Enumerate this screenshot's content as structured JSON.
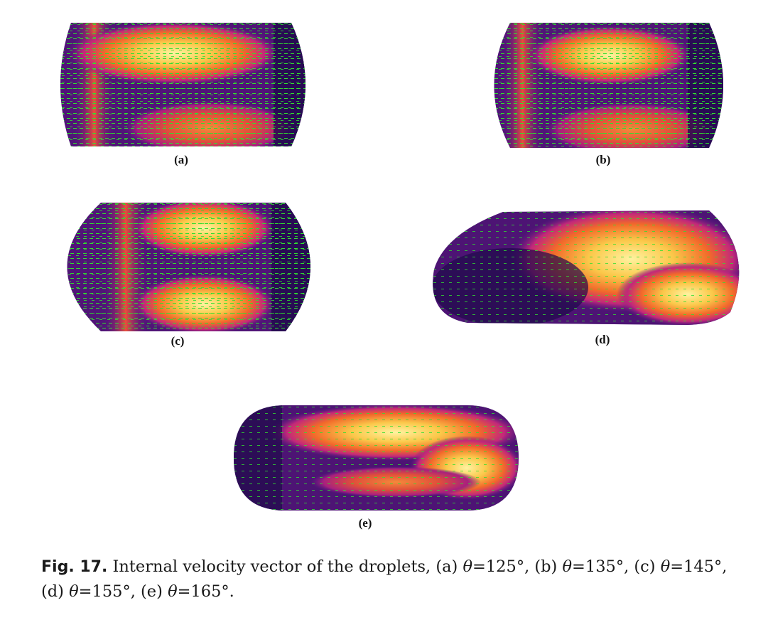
{
  "panels": [
    {
      "id": "a",
      "label": "(a)",
      "angle": "125°"
    },
    {
      "id": "b",
      "label": "(b)",
      "angle": "135°"
    },
    {
      "id": "c",
      "label": "(c)",
      "angle": "145°"
    },
    {
      "id": "d",
      "label": "(d)",
      "angle": "155°"
    },
    {
      "id": "e",
      "label": "(e)",
      "angle": "165°"
    }
  ],
  "caption": {
    "fig_label": "Fig. 17.",
    "text_1": " Internal velocity vector of the droplets, (a) ",
    "theta": "θ",
    "v1": "=125°, (b) ",
    "v2": "=135°, (c) ",
    "v3": "=145°,",
    "text_2": "(d) ",
    "v4": "=155°, (e) ",
    "v5": "=165°."
  },
  "colors": {
    "dark": "#1e0a4a",
    "purple": "#6a1a8a",
    "magenta": "#c2287a",
    "orange": "#f26a2a",
    "yellow": "#fdf08a",
    "vector": "#2fe02f"
  }
}
